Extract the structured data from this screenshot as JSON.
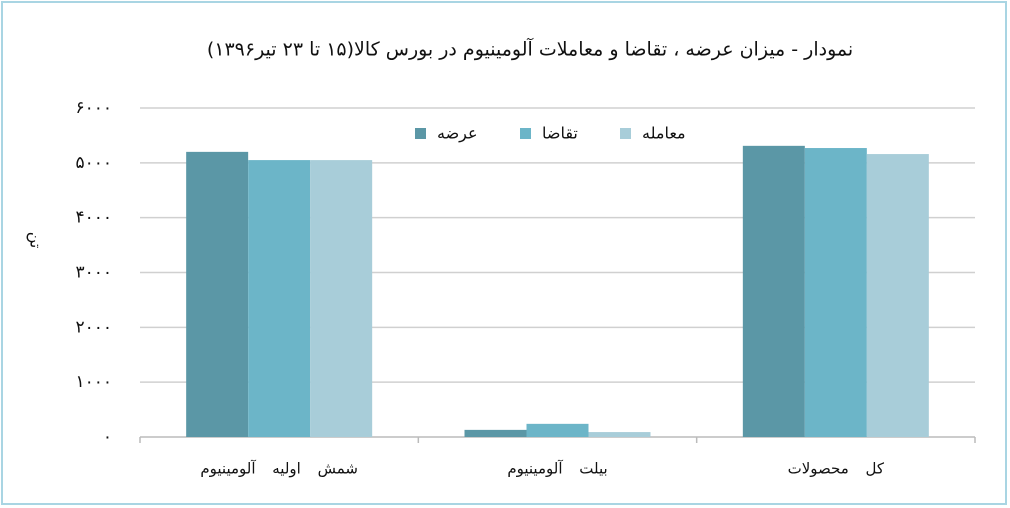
{
  "chart_data": {
    "type": "bar",
    "title": "نمودار - میزان عرضه ، تقاضا و معاملات آلومینیوم در بورس کالا(۱۵ تا ۲۳ تیر۱۳۹۶)",
    "y_label": "تن",
    "categories": [
      "شمش اولیه آلومینیوم",
      "بیلت آلومینیوم",
      "کل محصولات"
    ],
    "series": [
      {
        "name": "عرضه",
        "color": "#5b97a6",
        "values": [
          5200,
          130,
          5310
        ]
      },
      {
        "name": "تقاضا",
        "color": "#6cb5c8",
        "values": [
          5050,
          240,
          5270
        ]
      },
      {
        "name": "معامله",
        "color": "#a8cdd9",
        "values": [
          5050,
          90,
          5160
        ]
      }
    ],
    "ylim": [
      0,
      6000
    ],
    "yticks": [
      {
        "value": 0,
        "label": "٠"
      },
      {
        "value": 1000,
        "label": "۱۰۰۰"
      },
      {
        "value": 2000,
        "label": "۲۰۰۰"
      },
      {
        "value": 3000,
        "label": "۳۰۰۰"
      },
      {
        "value": 4000,
        "label": "۴۰۰۰"
      },
      {
        "value": 5000,
        "label": "۵۰۰۰"
      },
      {
        "value": 6000,
        "label": "۶۰۰۰"
      }
    ],
    "grid": true,
    "legend": "top"
  }
}
